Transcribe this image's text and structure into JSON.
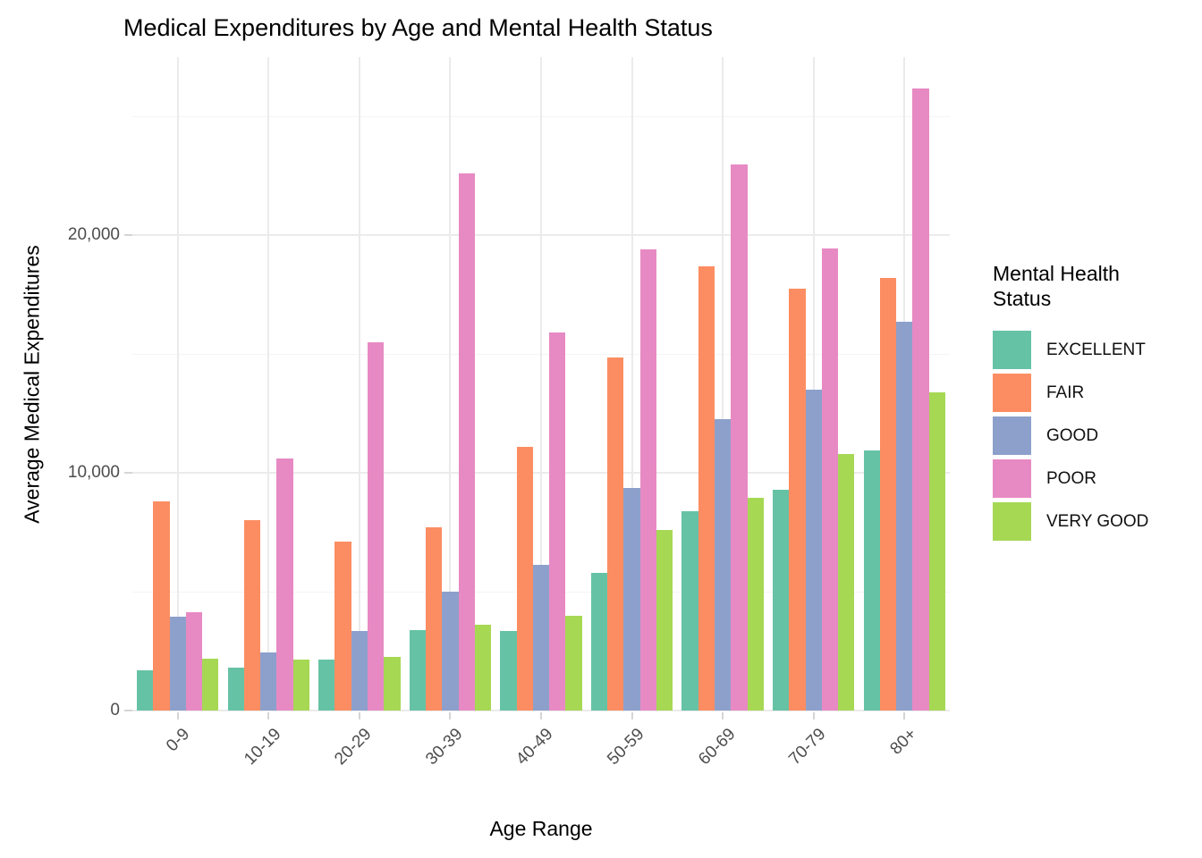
{
  "chart_data": {
    "type": "bar",
    "bar_grouping": "dodge",
    "title": "Medical Expenditures by Age and Mental Health Status",
    "xlabel": "Age Range",
    "ylabel": "Average Medical Expenditures",
    "categories": [
      "0-9",
      "10-19",
      "20-29",
      "30-39",
      "40-49",
      "50-59",
      "60-69",
      "70-79",
      "80+"
    ],
    "series": [
      {
        "name": "EXCELLENT",
        "color": "#66C2A5",
        "values": [
          1700,
          1800,
          2150,
          3400,
          3350,
          5800,
          8400,
          9300,
          10950
        ]
      },
      {
        "name": "FAIR",
        "color": "#FC8D62",
        "values": [
          8800,
          8000,
          7100,
          7700,
          11100,
          14850,
          18700,
          17750,
          18200
        ]
      },
      {
        "name": "GOOD",
        "color": "#8DA0CB",
        "values": [
          3950,
          2450,
          3350,
          5000,
          6150,
          9350,
          12250,
          13500,
          16350
        ]
      },
      {
        "name": "POOR",
        "color": "#E78AC3",
        "values": [
          4150,
          10600,
          15500,
          22600,
          15900,
          19400,
          23000,
          19450,
          26200
        ]
      },
      {
        "name": "VERY GOOD",
        "color": "#A6D854",
        "values": [
          2200,
          2150,
          2250,
          3600,
          4000,
          7600,
          8950,
          10800,
          13400
        ]
      }
    ],
    "y_axis": {
      "ticks": [
        0,
        10000,
        20000
      ],
      "tick_labels": [
        "0",
        "10,000",
        "20,000"
      ],
      "minor_ticks": [
        5000,
        15000,
        25000
      ],
      "ylim": [
        0,
        27500
      ]
    },
    "legend": {
      "title": "Mental Health Status",
      "position": "right"
    },
    "grid": true
  },
  "colors": {
    "background": "#FFFFFF",
    "grid_major": "#EBEBEB",
    "grid_minor": "#F4F4F4",
    "tick_mark": "#D5D5D5",
    "tick_label_text": "#4D4D4D",
    "title_text": "#000000"
  }
}
